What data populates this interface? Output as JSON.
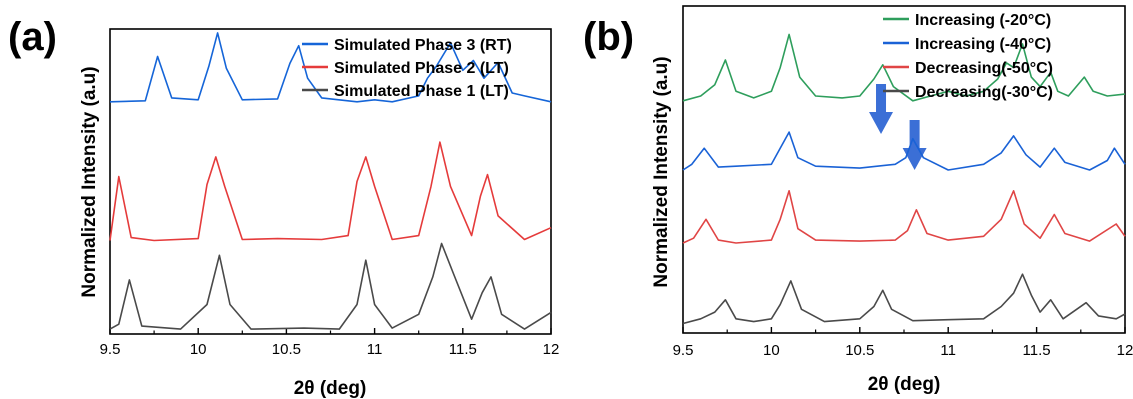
{
  "chart_data": [
    {
      "type": "line",
      "panel_label": "(a)",
      "xlabel": "2θ (deg)",
      "ylabel": "Normalized Intensity (a.u)",
      "xlim": [
        9.5,
        12
      ],
      "ylim": [
        0,
        3.1
      ],
      "x_ticks": [
        "9.5",
        "10",
        "10.5",
        "11",
        "11.5",
        "12"
      ],
      "y_ticks": false,
      "grid": false,
      "legend_position": "top-right",
      "series": [
        {
          "name": "Simulated Phase 3 (RT)",
          "color": "#1565d8",
          "x": [
            9.5,
            9.7,
            9.77,
            9.85,
            10.0,
            10.06,
            10.11,
            10.16,
            10.25,
            10.45,
            10.52,
            10.57,
            10.62,
            10.7,
            10.9,
            11.0,
            11.1,
            11.25,
            11.3,
            11.35,
            11.43,
            11.5,
            11.56,
            11.62,
            11.7,
            11.78,
            11.85,
            12.0
          ],
          "y": [
            2.36,
            2.37,
            2.82,
            2.4,
            2.38,
            2.72,
            3.06,
            2.7,
            2.38,
            2.39,
            2.75,
            2.93,
            2.6,
            2.4,
            2.36,
            2.38,
            2.36,
            2.42,
            2.6,
            2.72,
            2.96,
            2.68,
            2.78,
            2.6,
            2.76,
            2.45,
            2.42,
            2.36
          ]
        },
        {
          "name": "Simulated Phase 2 (LT)",
          "color": "#e53b3b",
          "x": [
            9.5,
            9.55,
            9.62,
            9.75,
            10.0,
            10.05,
            10.1,
            10.15,
            10.25,
            10.45,
            10.7,
            10.85,
            10.9,
            10.95,
            11.0,
            11.1,
            11.25,
            11.32,
            11.37,
            11.43,
            11.55,
            11.6,
            11.64,
            11.7,
            11.85,
            12.0
          ],
          "y": [
            0.95,
            1.6,
            0.98,
            0.95,
            0.97,
            1.52,
            1.8,
            1.5,
            0.96,
            0.97,
            0.96,
            1.0,
            1.55,
            1.8,
            1.5,
            0.96,
            1.0,
            1.5,
            1.95,
            1.5,
            1.0,
            1.4,
            1.62,
            1.2,
            0.96,
            1.08
          ]
        },
        {
          "name": "Simulated Phase 1 (LT)",
          "color": "#4a4a4a",
          "x": [
            9.5,
            9.55,
            9.61,
            9.68,
            9.9,
            10.05,
            10.12,
            10.18,
            10.3,
            10.6,
            10.8,
            10.9,
            10.95,
            11.0,
            11.1,
            11.25,
            11.33,
            11.38,
            11.45,
            11.55,
            11.61,
            11.66,
            11.72,
            11.85,
            12.0
          ],
          "y": [
            0.05,
            0.1,
            0.55,
            0.08,
            0.05,
            0.3,
            0.8,
            0.3,
            0.05,
            0.06,
            0.05,
            0.3,
            0.75,
            0.3,
            0.06,
            0.2,
            0.58,
            0.92,
            0.6,
            0.15,
            0.42,
            0.58,
            0.2,
            0.05,
            0.22
          ]
        }
      ]
    },
    {
      "type": "line",
      "panel_label": "(b)",
      "xlabel": "2θ (deg)",
      "ylabel": "Normalized Intensity (a.u)",
      "xlim": [
        9.5,
        12
      ],
      "ylim": [
        0,
        3.45
      ],
      "x_ticks": [
        "9.5",
        "10",
        "10.5",
        "11",
        "11.5",
        "12"
      ],
      "y_ticks": false,
      "grid": false,
      "legend_position": "top-right",
      "annotations": [
        {
          "type": "arrow",
          "x": 10.62,
          "direction": "down",
          "color": "#3b6fd6"
        },
        {
          "type": "arrow",
          "x": 10.81,
          "direction": "down",
          "color": "#3b6fd6"
        }
      ],
      "series": [
        {
          "name": "Increasing (-20°C)",
          "color": "#2e9e5c",
          "x": [
            9.5,
            9.6,
            9.68,
            9.74,
            9.8,
            9.9,
            10.0,
            10.05,
            10.1,
            10.16,
            10.25,
            10.4,
            10.5,
            10.58,
            10.63,
            10.69,
            10.8,
            10.9,
            11.0,
            11.1,
            11.2,
            11.28,
            11.33,
            11.37,
            11.42,
            11.47,
            11.52,
            11.58,
            11.62,
            11.68,
            11.77,
            11.82,
            11.9,
            12.0
          ],
          "y": [
            2.45,
            2.5,
            2.62,
            2.88,
            2.55,
            2.48,
            2.55,
            2.8,
            3.15,
            2.7,
            2.5,
            2.48,
            2.5,
            2.68,
            2.83,
            2.6,
            2.45,
            2.5,
            2.55,
            2.5,
            2.55,
            2.68,
            2.85,
            2.8,
            3.05,
            2.7,
            2.6,
            2.75,
            2.55,
            2.5,
            2.7,
            2.55,
            2.5,
            2.52
          ]
        },
        {
          "name": "Increasing (-40°C)",
          "color": "#1a62d6",
          "x": [
            9.5,
            9.55,
            9.62,
            9.7,
            9.8,
            10.0,
            10.05,
            10.1,
            10.15,
            10.25,
            10.5,
            10.7,
            10.76,
            10.8,
            10.86,
            11.0,
            11.2,
            11.3,
            11.37,
            11.44,
            11.52,
            11.6,
            11.66,
            11.8,
            11.9,
            11.94,
            12.0
          ],
          "y": [
            1.72,
            1.78,
            1.95,
            1.75,
            1.76,
            1.78,
            1.95,
            2.12,
            1.85,
            1.76,
            1.74,
            1.78,
            1.85,
            2.05,
            1.85,
            1.72,
            1.78,
            1.9,
            2.08,
            1.88,
            1.75,
            1.95,
            1.8,
            1.72,
            1.82,
            1.95,
            1.78
          ]
        },
        {
          "name": "Decreasing(-50°C)",
          "color": "#e04545",
          "x": [
            9.5,
            9.56,
            9.63,
            9.7,
            9.8,
            10.0,
            10.05,
            10.1,
            10.15,
            10.25,
            10.5,
            10.7,
            10.77,
            10.82,
            10.88,
            11.0,
            11.2,
            11.3,
            11.37,
            11.43,
            11.52,
            11.6,
            11.66,
            11.8,
            11.95,
            12.0
          ],
          "y": [
            0.95,
            1.0,
            1.2,
            0.98,
            0.95,
            0.98,
            1.2,
            1.5,
            1.1,
            0.98,
            0.97,
            0.98,
            1.08,
            1.3,
            1.05,
            0.98,
            1.02,
            1.2,
            1.5,
            1.15,
            1.0,
            1.25,
            1.05,
            0.97,
            1.15,
            1.02
          ]
        },
        {
          "name": "Decreasing(-30°C)",
          "color": "#4a4a4a",
          "x": [
            9.5,
            9.6,
            9.68,
            9.74,
            9.8,
            9.9,
            10.0,
            10.05,
            10.11,
            10.17,
            10.3,
            10.5,
            10.58,
            10.63,
            10.68,
            10.8,
            11.0,
            11.2,
            11.3,
            11.37,
            11.42,
            11.47,
            11.52,
            11.58,
            11.65,
            11.78,
            11.85,
            11.95,
            12.0
          ],
          "y": [
            0.1,
            0.15,
            0.22,
            0.35,
            0.15,
            0.12,
            0.15,
            0.3,
            0.55,
            0.25,
            0.12,
            0.15,
            0.28,
            0.45,
            0.25,
            0.13,
            0.14,
            0.15,
            0.28,
            0.42,
            0.62,
            0.4,
            0.22,
            0.35,
            0.15,
            0.32,
            0.18,
            0.15,
            0.2
          ]
        }
      ]
    }
  ]
}
